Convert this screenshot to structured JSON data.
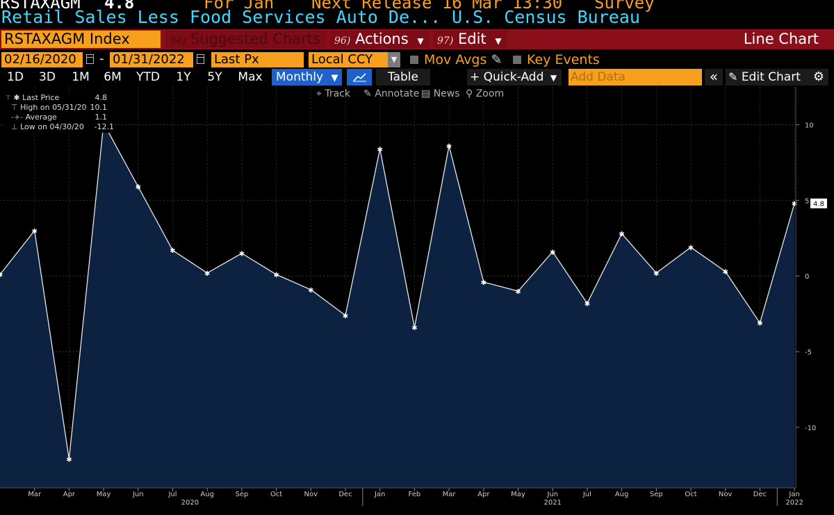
{
  "header": {
    "top_line": {
      "ticker": "RSTAXAGM",
      "value": "4.8",
      "period": "For Jan",
      "next_release": "Next Release 16 Mar 13:30",
      "survey": "Survey"
    },
    "series_title": "Retail Sales Less Food Services Auto De...",
    "source": "U.S. Census Bureau"
  },
  "bar": {
    "ticker_field": "RSTAXAGM Index",
    "suggested_num": "94)",
    "suggested_label": "Suggested Charts",
    "actions_num": "96)",
    "actions_label": "Actions",
    "edit_num": "97)",
    "edit_label": "Edit",
    "chart_type": "Line Chart"
  },
  "dates": {
    "start": "02/16/2020",
    "dash": "-",
    "end": "01/31/2022",
    "field": "Last Px",
    "currency": "Local CCY",
    "mov_avgs": "Mov Avgs",
    "key_events": "Key Events"
  },
  "toolbar": {
    "ranges": [
      "1D",
      "3D",
      "1M",
      "6M",
      "YTD",
      "1Y",
      "5Y",
      "Max"
    ],
    "frequency": "Monthly",
    "table": "Table",
    "quick_add": "+ Quick-Add",
    "add_data_placeholder": "Add Data",
    "edit_chart": "Edit Chart"
  },
  "chart_tools": {
    "track": "Track",
    "annotate": "Annotate",
    "news": "News",
    "zoom": "Zoom"
  },
  "legend": {
    "last_label": "Last Price",
    "last_value": "4.8",
    "high_label": "High on 05/31/20",
    "high_value": "10.1",
    "avg_label": "Average",
    "avg_value": "1.1",
    "low_label": "Low on 04/30/20",
    "low_value": "-12.1"
  },
  "colors": {
    "orange": "#f7a020",
    "cyan": "#3fd9ff",
    "maroon": "#8a0f1a",
    "blue": "#1e61c9",
    "area": "#0c2240"
  },
  "chart_data": {
    "type": "area",
    "x": [
      "2020-02-29",
      "2020-03-31",
      "2020-04-30",
      "2020-05-31",
      "2020-06-30",
      "2020-07-31",
      "2020-08-31",
      "2020-09-30",
      "2020-10-31",
      "2020-11-30",
      "2020-12-31",
      "2021-01-31",
      "2021-02-28",
      "2021-03-31",
      "2021-04-30",
      "2021-05-31",
      "2021-06-30",
      "2021-07-31",
      "2021-08-31",
      "2021-09-30",
      "2021-10-31",
      "2021-11-30",
      "2021-12-31",
      "2022-01-31"
    ],
    "values": [
      0.1,
      3.0,
      -12.1,
      10.1,
      5.9,
      1.7,
      0.2,
      1.5,
      0.1,
      -0.9,
      -2.6,
      8.4,
      -3.4,
      8.6,
      -0.4,
      -1.0,
      1.6,
      -1.8,
      2.8,
      0.2,
      1.9,
      0.3,
      -3.1,
      4.8
    ],
    "x_tick_labels": [
      "Mar",
      "Apr",
      "May",
      "Jun",
      "Jul",
      "Aug",
      "Sep",
      "Oct",
      "Nov",
      "Dec",
      "Jan",
      "Feb",
      "Mar",
      "Apr",
      "May",
      "Jun",
      "Jul",
      "Aug",
      "Sep",
      "Oct",
      "Nov",
      "Dec",
      "Jan"
    ],
    "year_labels": [
      "2020",
      "2021",
      "2022"
    ],
    "y_ticks": [
      10,
      5,
      0,
      -5,
      -10
    ],
    "y_tick_labels": [
      "10",
      "5",
      "0",
      "-5",
      "-10"
    ],
    "ylim": [
      -14,
      12.5
    ],
    "last_value_label": "4.8",
    "grid": true
  }
}
